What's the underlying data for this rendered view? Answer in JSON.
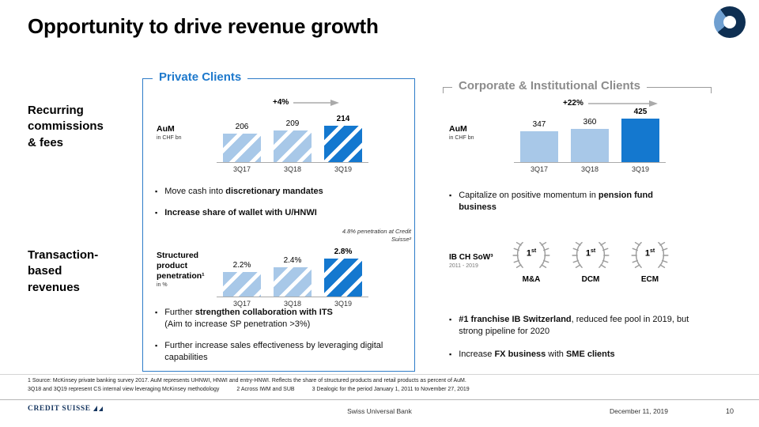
{
  "slide": {
    "title": "Opportunity to drive revenue growth",
    "page_number": "10",
    "footer": {
      "brand": "CREDIT SUISSE",
      "center": "Swiss Universal Bank",
      "date": "December 11, 2019"
    },
    "footnotes": {
      "line1": "1 Source: McKinsey private banking survey 2017. AuM represents UHNWI, HNWI and entry-HNWI. Reflects the share of structured products and retail products as percent of AuM.",
      "line2_parts": [
        "3Q18 and 3Q19 represent CS internal view leveraging McKinsey methodology",
        "2 Across IWM and SUB",
        "3 Dealogic for the period January 1, 2011 to November 27, 2019"
      ]
    }
  },
  "row_labels": {
    "first": "Recurring\ncommissions\n& fees",
    "second": "Transaction-\nbased\nrevenues"
  },
  "private": {
    "header": "Private Clients",
    "aum_label": "AuM",
    "aum_unit": "in CHF bn",
    "spp_label": "Structured\nproduct\npenetration¹",
    "spp_unit": "in %",
    "spp_note": "4.8% penetration at Credit Suisse²",
    "bullets1": [
      [
        {
          "t": "Move cash into ",
          "b": false
        },
        {
          "t": "discretionary mandates",
          "b": true
        }
      ],
      [
        {
          "t": "Increase share of wallet with U/HNWI",
          "b": true
        }
      ]
    ],
    "bullets2": [
      [
        {
          "t": "Further ",
          "b": false
        },
        {
          "t": "strengthen collaboration with ITS",
          "b": true
        },
        {
          "t": "\n(Aim to increase SP penetration >3%)",
          "b": false
        }
      ],
      [
        {
          "t": "Further increase sales effectiveness by leveraging digital capabilities",
          "b": false
        }
      ]
    ]
  },
  "corporate": {
    "header": "Corporate & Institutional Clients",
    "aum_label": "AuM",
    "aum_unit": "in CHF bn",
    "sow_label": "IB CH SoW³",
    "sow_period": "2011 - 2019",
    "awards": [
      {
        "rank": "1",
        "suffix": "st",
        "label": "M&A"
      },
      {
        "rank": "1",
        "suffix": "st",
        "label": "DCM"
      },
      {
        "rank": "1",
        "suffix": "st",
        "label": "ECM"
      }
    ],
    "bullets1": [
      [
        {
          "t": "Capitalize on positive momentum in ",
          "b": false
        },
        {
          "t": "pension fund business",
          "b": true
        }
      ]
    ],
    "bullets2": [
      [
        {
          "t": "#1 franchise IB Switzerland",
          "b": true
        },
        {
          "t": ", reduced fee pool in 2019, but strong pipeline for 2020",
          "b": false
        }
      ],
      [
        {
          "t": "Increase ",
          "b": false
        },
        {
          "t": "FX business",
          "b": true
        },
        {
          "t": " with ",
          "b": false
        },
        {
          "t": "SME clients",
          "b": true
        }
      ]
    ]
  },
  "chart_data": [
    {
      "type": "bar",
      "title": "Private Clients AuM",
      "ylabel": "AuM in CHF bn",
      "categories": [
        "3Q17",
        "3Q18",
        "3Q19"
      ],
      "values": [
        206,
        209,
        214
      ],
      "value_labels": [
        "206",
        "209",
        "214"
      ],
      "growth_label": "+4%",
      "ylim": [
        178,
        214
      ],
      "bar_style": "striped",
      "highlight_index": 2,
      "grid": false,
      "legend": false
    },
    {
      "type": "bar",
      "title": "Structured product penetration",
      "ylabel": "Structured product penetration in %",
      "categories": [
        "3Q17",
        "3Q18",
        "3Q19"
      ],
      "values": [
        2.2,
        2.4,
        2.8
      ],
      "value_labels": [
        "2.2%",
        "2.4%",
        "2.8%"
      ],
      "annotation": "4.8% penetration at Credit Suisse²",
      "ylim": [
        1.1,
        2.8
      ],
      "bar_style": "striped",
      "highlight_index": 2,
      "grid": false,
      "legend": false
    },
    {
      "type": "bar",
      "title": "Corporate & Institutional Clients AuM",
      "ylabel": "AuM in CHF bn",
      "categories": [
        "3Q17",
        "3Q18",
        "3Q19"
      ],
      "values": [
        347,
        360,
        425
      ],
      "value_labels": [
        "347",
        "360",
        "425"
      ],
      "growth_label": "+22%",
      "ylim": [
        150,
        425
      ],
      "bar_style": "solid",
      "highlight_index": 2,
      "grid": false,
      "legend": false
    }
  ],
  "colors": {
    "accent_blue": "#1e79cc",
    "bar_light": "#a8c8e8",
    "bar_dark": "#1478cf",
    "gray_header": "#8c8c8c",
    "arrow_gray": "#aaaaaa",
    "brand_navy": "#15355f"
  }
}
